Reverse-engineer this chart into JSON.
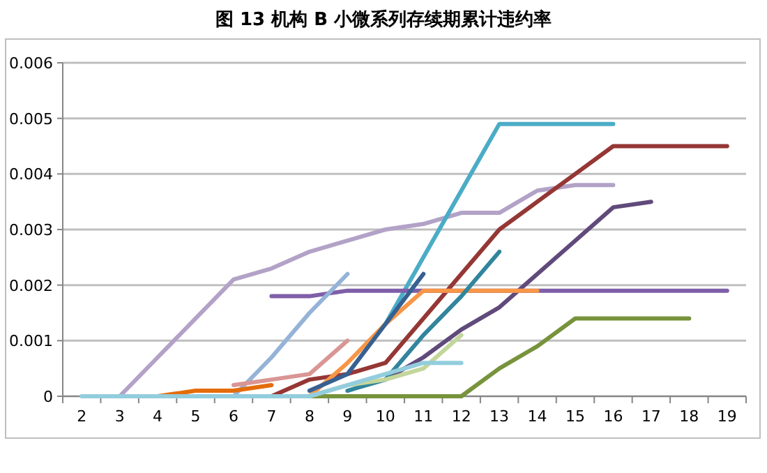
{
  "chart_data": {
    "type": "line",
    "title": "图 13 机构 B 小微系列存续期累计违约率",
    "categories": [
      "2",
      "3",
      "4",
      "5",
      "6",
      "7",
      "8",
      "9",
      "10",
      "11",
      "12",
      "13",
      "14",
      "15",
      "16",
      "17",
      "18",
      "19"
    ],
    "ylim": [
      0,
      0.006
    ],
    "yticks": [
      {
        "value": 0,
        "label": "0"
      },
      0.001,
      0.002,
      0.003,
      0.004,
      0.005,
      0.006
    ],
    "grid": "y",
    "marker": "none",
    "line_style": "solid",
    "series": [
      {
        "color": "#b3a2c7",
        "values": [
          null,
          0,
          0.0007,
          0.0014,
          0.0021,
          0.0023,
          0.0026,
          0.0028,
          0.003,
          0.0031,
          0.0033,
          0.0033,
          0.0037,
          0.0038,
          0.0038,
          null,
          null,
          null
        ]
      },
      {
        "color": "#4bacc6",
        "values": [
          null,
          null,
          null,
          null,
          null,
          null,
          null,
          null,
          0.0013,
          0.0025,
          0.0037,
          0.0049,
          0.0049,
          0.0049,
          0.0049,
          null,
          null,
          null
        ]
      },
      {
        "color": "#953735",
        "values": [
          null,
          null,
          null,
          null,
          null,
          0,
          0.0003,
          0.0004,
          0.0006,
          0.0014,
          0.0022,
          0.003,
          0.0035,
          0.004,
          0.0045,
          0.0045,
          0.0045,
          0.0045
        ]
      },
      {
        "color": "#604a7b",
        "values": [
          null,
          null,
          null,
          null,
          null,
          null,
          null,
          null,
          0.0003,
          0.0007,
          0.0012,
          0.0016,
          0.0022,
          0.0028,
          0.0034,
          0.0035,
          null,
          null
        ]
      },
      {
        "color": "#7f5fa8",
        "values": [
          null,
          null,
          null,
          null,
          null,
          0.0018,
          0.0018,
          0.0019,
          0.0019,
          0.0019,
          0.0019,
          0.0019,
          0.0019,
          0.0019,
          0.0019,
          0.0019,
          0.0019,
          0.0019
        ]
      },
      {
        "color": "#f79646",
        "values": [
          null,
          null,
          null,
          null,
          null,
          null,
          0,
          0.0006,
          0.0013,
          0.0019,
          0.0019,
          0.0019,
          0.0019,
          null,
          null,
          null,
          null,
          null
        ]
      },
      {
        "color": "#77933c",
        "values": [
          null,
          null,
          null,
          null,
          null,
          null,
          0,
          0,
          0,
          0,
          0,
          0.0005,
          0.0009,
          0.0014,
          0.0014,
          0.0014,
          0.0014,
          null
        ]
      },
      {
        "color": "#31859c",
        "values": [
          null,
          null,
          null,
          null,
          null,
          null,
          null,
          0.0001,
          0.0003,
          0.0011,
          0.0018,
          0.0026,
          null,
          null,
          null,
          null,
          null,
          null
        ]
      },
      {
        "color": "#376092",
        "values": [
          null,
          null,
          null,
          null,
          null,
          null,
          0.0001,
          0.0004,
          0.0013,
          0.0022,
          null,
          null,
          null,
          null,
          null,
          null,
          null,
          null
        ]
      },
      {
        "color": "#95b3d7",
        "values": [
          null,
          null,
          null,
          null,
          0,
          0.0007,
          0.0015,
          0.0022,
          null,
          null,
          null,
          null,
          null,
          null,
          null,
          null,
          null,
          null
        ]
      },
      {
        "color": "#d99694",
        "values": [
          null,
          null,
          null,
          null,
          0.0002,
          0.0003,
          0.0004,
          0.001,
          null,
          null,
          null,
          null,
          null,
          null,
          null,
          null,
          null,
          null
        ]
      },
      {
        "color": "#e46c0a",
        "values": [
          null,
          null,
          0,
          0.0001,
          0.0001,
          0.0002,
          null,
          null,
          null,
          null,
          null,
          null,
          null,
          null,
          null,
          null,
          null,
          null
        ]
      },
      {
        "color": "#c3d69b",
        "values": [
          null,
          null,
          null,
          null,
          null,
          null,
          0,
          0.0002,
          0.0003,
          0.0005,
          0.0011,
          null,
          null,
          null,
          null,
          null,
          null,
          null
        ]
      },
      {
        "color": "#93cddd",
        "values": [
          0,
          0,
          0,
          0,
          0,
          0,
          0,
          0.0002,
          0.0004,
          0.0006,
          0.0006,
          null,
          null,
          null,
          null,
          null,
          null,
          null
        ]
      }
    ]
  }
}
